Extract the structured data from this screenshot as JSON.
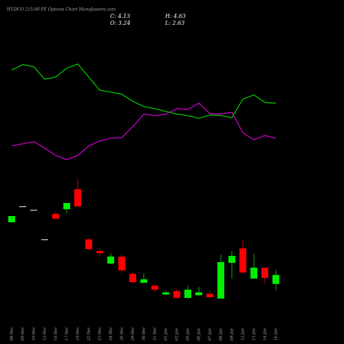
{
  "chart_data": {
    "type": "candlestick",
    "title": "HUDCO 215.00 PE Options Chart Munafasutra.com",
    "summary": [
      "C: 4.13",
      "H: 4.63",
      "O: 3.24",
      "L: 2.63"
    ],
    "categories": [
      "08 Dec",
      "09 Dec",
      "10 Dec",
      "12 Dec",
      "16 Dec",
      "17 Dec",
      "19 Dec",
      "22 Dec",
      "23 Dec",
      "24 Dec",
      "26 Dec",
      "29 Dec",
      "30 Dec",
      "31 Dec",
      "01 Jan",
      "02 Jan",
      "05 Jan",
      "06 Jan",
      "07 Jan",
      "08 Jan",
      "09 Jan",
      "12 Jan",
      "13 Jan",
      "14 Jan",
      "16 Jan"
    ],
    "open": [
      9.38,
      10.96,
      10.62,
      7.67,
      10.21,
      10.68,
      12.67,
      7.67,
      6.51,
      5.27,
      5.96,
      4.25,
      3.36,
      3.08,
      2.19,
      2.53,
      1.85,
      2.12,
      2.26,
      1.78,
      5.34,
      6.78,
      3.77,
      4.86,
      3.24
    ],
    "high": [
      10.0,
      10.96,
      10.62,
      7.67,
      10.41,
      11.3,
      13.7,
      7.81,
      6.78,
      6.3,
      6.16,
      4.38,
      4.25,
      3.08,
      2.6,
      2.74,
      3.08,
      2.95,
      2.53,
      6.16,
      6.51,
      7.6,
      6.23,
      4.86,
      4.63
    ],
    "low": [
      9.38,
      10.96,
      10.62,
      7.67,
      9.73,
      10.27,
      10.96,
      6.58,
      6.03,
      5.21,
      4.32,
      3.29,
      3.29,
      2.4,
      2.12,
      1.78,
      1.78,
      2.05,
      1.85,
      1.78,
      3.77,
      4.25,
      3.77,
      3.29,
      2.63
    ],
    "close": [
      10.0,
      10.96,
      10.62,
      7.67,
      9.73,
      11.3,
      10.96,
      6.71,
      6.3,
      5.96,
      4.59,
      3.42,
      3.7,
      2.67,
      2.4,
      1.85,
      2.67,
      2.4,
      1.92,
      5.41,
      6.03,
      4.38,
      4.86,
      3.84,
      4.13
    ],
    "up_color": "#00ee00",
    "down_color": "#ff0000",
    "flat_color": "#ffffff",
    "ylim": [
      0,
      14
    ],
    "y2lim": [
      0,
      100
    ],
    "series": [
      {
        "color": "#00cc00",
        "axis": "y2",
        "values": [
          86.3,
          91.3,
          89.4,
          78.1,
          80,
          88.1,
          91.9,
          80,
          68.1,
          66.3,
          64.4,
          58.1,
          53.1,
          51.3,
          48.8,
          46.3,
          45,
          42.5,
          45.6,
          45,
          43.1,
          60,
          63.8,
          56.9,
          56.3
        ]
      },
      {
        "color": "#cc00cc",
        "axis": "y2",
        "values": [
          17.5,
          19.4,
          21.3,
          15.6,
          8.8,
          5,
          8.8,
          17.5,
          21.9,
          24.4,
          25,
          35,
          46.3,
          45,
          46.3,
          51.3,
          50.6,
          56.3,
          46.9,
          46.3,
          48.1,
          29.4,
          23.1,
          26.9,
          24.4
        ]
      }
    ]
  }
}
